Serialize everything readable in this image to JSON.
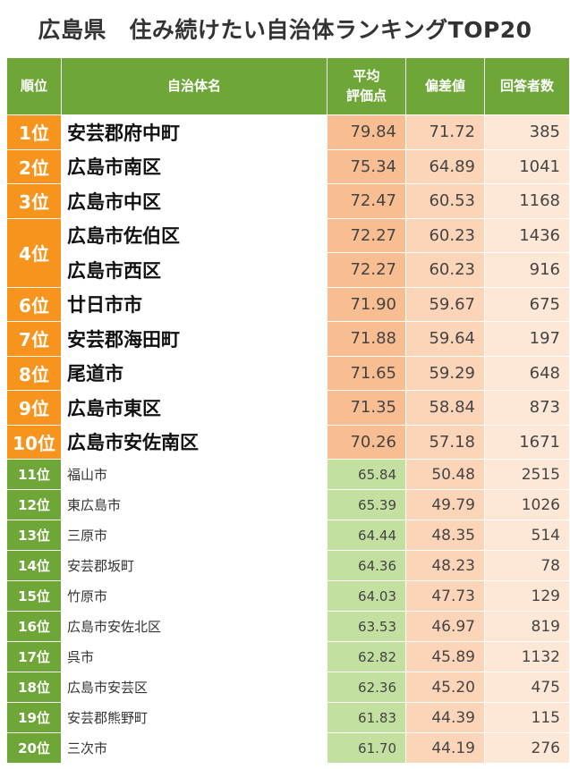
{
  "title": "広島県　住み続けたい自治体ランキングTOP20",
  "headers": {
    "rank": "順位",
    "name": "自治体名",
    "avg_line1": "平均",
    "avg_line2": "評価点",
    "deviation": "偏差値",
    "respondents": "回答者数"
  },
  "rows": [
    {
      "rank": "1位",
      "name": "安芸郡府中町",
      "avg": "79.84",
      "dev": "71.72",
      "resp": "385"
    },
    {
      "rank": "2位",
      "name": "広島市南区",
      "avg": "75.34",
      "dev": "64.89",
      "resp": "1041"
    },
    {
      "rank": "3位",
      "name": "広島市中区",
      "avg": "72.47",
      "dev": "60.53",
      "resp": "1168"
    },
    {
      "rank": "4位",
      "name": "広島市佐伯区",
      "avg": "72.27",
      "dev": "60.23",
      "resp": "1436"
    },
    {
      "rank": "",
      "name": "広島市西区",
      "avg": "72.27",
      "dev": "60.23",
      "resp": "916"
    },
    {
      "rank": "6位",
      "name": "廿日市市",
      "avg": "71.90",
      "dev": "59.67",
      "resp": "675"
    },
    {
      "rank": "7位",
      "name": "安芸郡海田町",
      "avg": "71.88",
      "dev": "59.64",
      "resp": "197"
    },
    {
      "rank": "8位",
      "name": "尾道市",
      "avg": "71.65",
      "dev": "59.29",
      "resp": "648"
    },
    {
      "rank": "9位",
      "name": "広島市東区",
      "avg": "71.35",
      "dev": "58.84",
      "resp": "873"
    },
    {
      "rank": "10位",
      "name": "広島市安佐南区",
      "avg": "70.26",
      "dev": "57.18",
      "resp": "1671"
    },
    {
      "rank": "11位",
      "name": "福山市",
      "avg": "65.84",
      "dev": "50.48",
      "resp": "2515"
    },
    {
      "rank": "12位",
      "name": "東広島市",
      "avg": "65.39",
      "dev": "49.79",
      "resp": "1026"
    },
    {
      "rank": "13位",
      "name": "三原市",
      "avg": "64.44",
      "dev": "48.35",
      "resp": "514"
    },
    {
      "rank": "14位",
      "name": "安芸郡坂町",
      "avg": "64.36",
      "dev": "48.23",
      "resp": "78"
    },
    {
      "rank": "15位",
      "name": "竹原市",
      "avg": "64.03",
      "dev": "47.73",
      "resp": "129"
    },
    {
      "rank": "16位",
      "name": "広島市安佐北区",
      "avg": "63.53",
      "dev": "46.97",
      "resp": "819"
    },
    {
      "rank": "17位",
      "name": "呉市",
      "avg": "62.82",
      "dev": "45.89",
      "resp": "1132"
    },
    {
      "rank": "18位",
      "name": "広島市安芸区",
      "avg": "62.36",
      "dev": "45.20",
      "resp": "475"
    },
    {
      "rank": "19位",
      "name": "安芸郡熊野町",
      "avg": "61.83",
      "dev": "44.39",
      "resp": "115"
    },
    {
      "rank": "20位",
      "name": "三次市",
      "avg": "61.70",
      "dev": "44.19",
      "resp": "276"
    }
  ],
  "colors": {
    "header_green": "#6ea637",
    "top_rank_orange": "#f7941d",
    "top_avg": "#f9bd92",
    "low_avg": "#c3e0a1",
    "deviation": "#fcd5b9",
    "respondents": "#fde7d6"
  }
}
